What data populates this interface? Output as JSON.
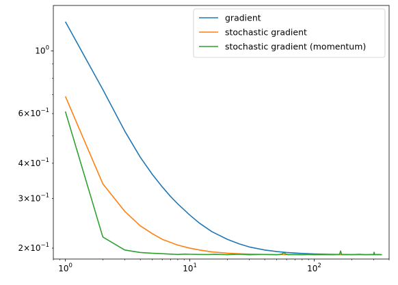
{
  "chart_data": {
    "type": "line",
    "title": "",
    "xlabel": "",
    "ylabel": "",
    "xscale": "log",
    "yscale": "log",
    "xlim": [
      0.8,
      400
    ],
    "ylim": [
      0.183,
      1.45
    ],
    "grid": false,
    "legend_position": "top-right",
    "x_ticks": [
      {
        "value": 1,
        "base": "10",
        "exp": "0"
      },
      {
        "value": 10,
        "base": "10",
        "exp": "1"
      },
      {
        "value": 100,
        "base": "10",
        "exp": "2"
      }
    ],
    "y_ticks": [
      {
        "value": 1.0,
        "base": "10",
        "exp": "0",
        "mant": ""
      },
      {
        "value": 0.6,
        "base": "10",
        "exp": "−1",
        "mant": "6×"
      },
      {
        "value": 0.4,
        "base": "10",
        "exp": "−1",
        "mant": "4×"
      },
      {
        "value": 0.3,
        "base": "10",
        "exp": "−1",
        "mant": "3×"
      },
      {
        "value": 0.2,
        "base": "10",
        "exp": "−1",
        "mant": "2×"
      }
    ],
    "series": [
      {
        "name": "gradient",
        "color": "#1f77b4",
        "x": [
          1,
          2,
          3,
          4,
          5,
          6,
          7,
          8,
          10,
          12,
          15,
          20,
          25,
          30,
          40,
          50,
          60,
          80,
          100,
          130,
          170,
          220,
          300,
          350
        ],
        "y": [
          1.27,
          0.73,
          0.52,
          0.42,
          0.365,
          0.33,
          0.305,
          0.287,
          0.262,
          0.245,
          0.229,
          0.215,
          0.207,
          0.202,
          0.197,
          0.1945,
          0.193,
          0.1915,
          0.1907,
          0.1902,
          0.1899,
          0.1897,
          0.1896,
          0.1896
        ]
      },
      {
        "name": "stochastic gradient",
        "color": "#ff7f0e",
        "x": [
          1,
          2,
          3,
          4,
          5,
          6,
          8,
          10,
          12,
          15,
          20,
          25,
          30,
          40,
          50,
          70,
          100,
          150,
          200,
          250,
          300,
          350
        ],
        "y": [
          0.69,
          0.338,
          0.27,
          0.24,
          0.225,
          0.215,
          0.205,
          0.2,
          0.197,
          0.194,
          0.192,
          0.191,
          0.1905,
          0.19,
          0.1898,
          0.1897,
          0.1896,
          0.1896,
          0.1896,
          0.1896,
          0.1896,
          0.1896
        ]
      },
      {
        "name": "stochastic gradient (momentum)",
        "color": "#2ca02c",
        "x": [
          1,
          2,
          3,
          4,
          5,
          6,
          7,
          8,
          9,
          10,
          12,
          14,
          16,
          20,
          25,
          30,
          40,
          50,
          55,
          57,
          59,
          62,
          70,
          80,
          90,
          100,
          120,
          140,
          160,
          163,
          166,
          180,
          200,
          230,
          260,
          290,
          300,
          303,
          306,
          330,
          350
        ],
        "y": [
          0.61,
          0.219,
          0.197,
          0.193,
          0.1918,
          0.1912,
          0.1905,
          0.19,
          0.1905,
          0.1903,
          0.19,
          0.1898,
          0.1902,
          0.1897,
          0.1903,
          0.1896,
          0.19,
          0.1895,
          0.1905,
          0.193,
          0.1905,
          0.1897,
          0.19,
          0.1895,
          0.1902,
          0.1896,
          0.19,
          0.1896,
          0.1903,
          0.1955,
          0.1898,
          0.19,
          0.1896,
          0.1902,
          0.1896,
          0.19,
          0.1896,
          0.1935,
          0.1897,
          0.19,
          0.1896
        ]
      }
    ]
  }
}
